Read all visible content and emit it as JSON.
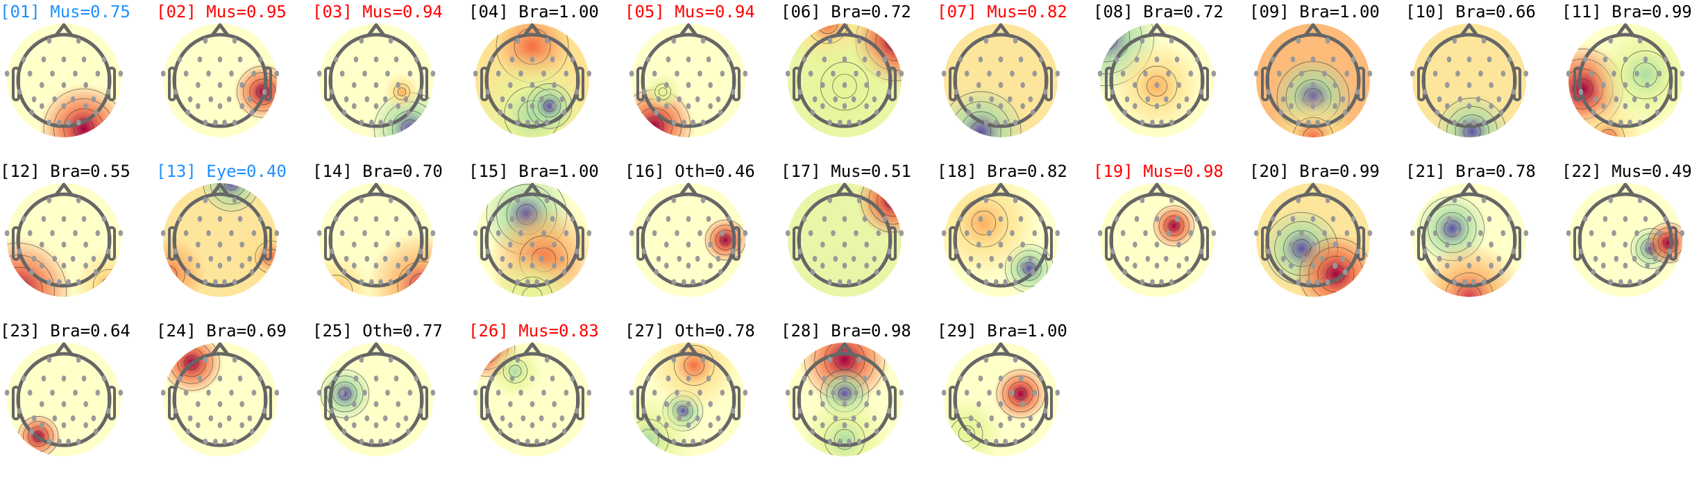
{
  "colors": {
    "default": "#000000",
    "flagged": "#ff0000",
    "eye": "#1e90ff"
  },
  "colormap": [
    "#5e4fa2",
    "#3288bd",
    "#66c2a5",
    "#abdda4",
    "#e6f598",
    "#ffffbf",
    "#fee08b",
    "#fdae61",
    "#f46d43",
    "#d53e4f",
    "#9e0142"
  ],
  "components": [
    {
      "label": "[01] Mus=0.75",
      "color": "eye"
    },
    {
      "label": "[02] Mus=0.95",
      "color": "flagged"
    },
    {
      "label": "[03] Mus=0.94",
      "color": "flagged"
    },
    {
      "label": "[04] Bra=1.00",
      "color": "default"
    },
    {
      "label": "[05] Mus=0.94",
      "color": "flagged"
    },
    {
      "label": "[06] Bra=0.72",
      "color": "default"
    },
    {
      "label": "[07] Mus=0.82",
      "color": "flagged"
    },
    {
      "label": "[08] Bra=0.72",
      "color": "default"
    },
    {
      "label": "[09] Bra=1.00",
      "color": "default"
    },
    {
      "label": "[10] Bra=0.66",
      "color": "default"
    },
    {
      "label": "[11] Bra=0.99",
      "color": "default"
    },
    {
      "label": "[12] Bra=0.55",
      "color": "default"
    },
    {
      "label": "[13] Eye=0.40",
      "color": "eye"
    },
    {
      "label": "[14] Bra=0.70",
      "color": "default"
    },
    {
      "label": "[15] Bra=1.00",
      "color": "default"
    },
    {
      "label": "[16] Oth=0.46",
      "color": "default"
    },
    {
      "label": "[17] Mus=0.51",
      "color": "default"
    },
    {
      "label": "[18] Bra=0.82",
      "color": "default"
    },
    {
      "label": "[19] Mus=0.98",
      "color": "flagged"
    },
    {
      "label": "[20] Bra=0.99",
      "color": "default"
    },
    {
      "label": "[21] Bra=0.78",
      "color": "default"
    },
    {
      "label": "[22] Mus=0.49",
      "color": "default"
    },
    {
      "label": "[23] Bra=0.64",
      "color": "default"
    },
    {
      "label": "[24] Bra=0.69",
      "color": "default"
    },
    {
      "label": "[25] Oth=0.77",
      "color": "default"
    },
    {
      "label": "[26] Mus=0.83",
      "color": "flagged"
    },
    {
      "label": "[27] Oth=0.78",
      "color": "default"
    },
    {
      "label": "[28] Bra=0.98",
      "color": "default"
    },
    {
      "label": "[29] Bra=1.00",
      "color": "default"
    }
  ]
}
